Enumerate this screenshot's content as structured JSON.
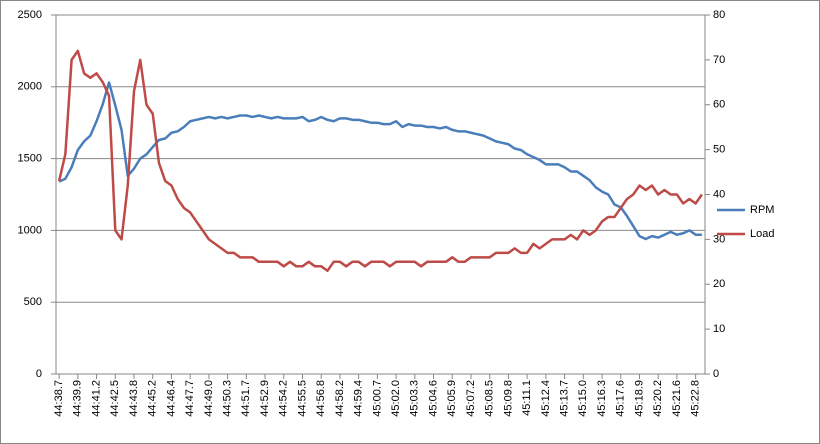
{
  "chart_data": {
    "type": "line",
    "categories": [
      "44:38.7",
      null,
      null,
      "44:39.9",
      null,
      null,
      "44:41.2",
      null,
      null,
      "44:42.5",
      null,
      null,
      "44:43.8",
      null,
      null,
      "44:45.2",
      null,
      null,
      "44:46.4",
      null,
      null,
      "44:47.7",
      null,
      null,
      "44:49.0",
      null,
      null,
      "44:50.3",
      null,
      null,
      "44:51.7",
      null,
      null,
      "44:52.9",
      null,
      null,
      "44:54.2",
      null,
      null,
      "44:55.5",
      null,
      null,
      "44:56.8",
      null,
      null,
      "44:58.2",
      null,
      null,
      "44:59.4",
      null,
      null,
      "45:00.7",
      null,
      null,
      "45:02.0",
      null,
      null,
      "45:03.3",
      null,
      null,
      "45:04.6",
      null,
      null,
      "45:05.9",
      null,
      null,
      "45:07.2",
      null,
      null,
      "45:08.5",
      null,
      null,
      "45:09.8",
      null,
      null,
      "45:11.1",
      null,
      null,
      "45:12.4",
      null,
      null,
      "45:13.7",
      null,
      null,
      "45:15.0",
      null,
      null,
      "45:16.3",
      null,
      null,
      "45:17.6",
      null,
      null,
      "45:18.9",
      null,
      null,
      "45:20.2",
      null,
      null,
      "45:21.6",
      null,
      null,
      "45:22.8",
      null
    ],
    "series": [
      {
        "name": "RPM",
        "color": "#4a7ebb",
        "values": [
          1340,
          1360,
          1440,
          1560,
          1620,
          1660,
          1760,
          1880,
          2030,
          1870,
          1700,
          1380,
          1430,
          1500,
          1530,
          1580,
          1630,
          1640,
          1680,
          1690,
          1720,
          1760,
          1770,
          1780,
          1790,
          1780,
          1790,
          1780,
          1790,
          1800,
          1800,
          1790,
          1800,
          1790,
          1780,
          1790,
          1780,
          1780,
          1780,
          1790,
          1760,
          1770,
          1790,
          1770,
          1760,
          1780,
          1780,
          1770,
          1770,
          1760,
          1750,
          1750,
          1740,
          1740,
          1760,
          1720,
          1740,
          1730,
          1730,
          1720,
          1720,
          1710,
          1720,
          1700,
          1690,
          1690,
          1680,
          1670,
          1660,
          1640,
          1620,
          1610,
          1600,
          1570,
          1560,
          1530,
          1510,
          1490,
          1460,
          1460,
          1460,
          1440,
          1410,
          1410,
          1380,
          1350,
          1300,
          1270,
          1250,
          1180,
          1160,
          1100,
          1030,
          960,
          940,
          960,
          950,
          970,
          990,
          970,
          980,
          1000,
          970,
          970
        ]
      },
      {
        "name": "Load",
        "color": "#be4b48",
        "axis": "y2",
        "values": [
          43,
          49,
          70,
          72,
          67,
          66,
          67,
          65,
          62,
          32,
          30,
          42,
          63,
          70,
          60,
          58,
          47,
          43,
          42,
          39,
          37,
          36,
          34,
          32,
          30,
          29,
          28,
          27,
          27,
          26,
          26,
          26,
          25,
          25,
          25,
          25,
          24,
          25,
          24,
          24,
          25,
          24,
          24,
          23,
          25,
          25,
          24,
          25,
          25,
          24,
          25,
          25,
          25,
          24,
          25,
          25,
          25,
          25,
          24,
          25,
          25,
          25,
          25,
          26,
          25,
          25,
          26,
          26,
          26,
          26,
          27,
          27,
          27,
          28,
          27,
          27,
          29,
          28,
          29,
          30,
          30,
          30,
          31,
          30,
          32,
          31,
          32,
          34,
          35,
          35,
          37,
          39,
          40,
          42,
          41,
          42,
          40,
          41,
          40,
          40,
          38,
          39,
          38,
          40
        ]
      }
    ],
    "ylim": [
      0,
      2500
    ],
    "yticks": [
      0,
      500,
      1000,
      1500,
      2000,
      2500
    ],
    "y2lim": [
      0,
      80
    ],
    "y2ticks": [
      0,
      10,
      20,
      30,
      40,
      50,
      60,
      70,
      80
    ],
    "grid": true,
    "legend": "right"
  }
}
